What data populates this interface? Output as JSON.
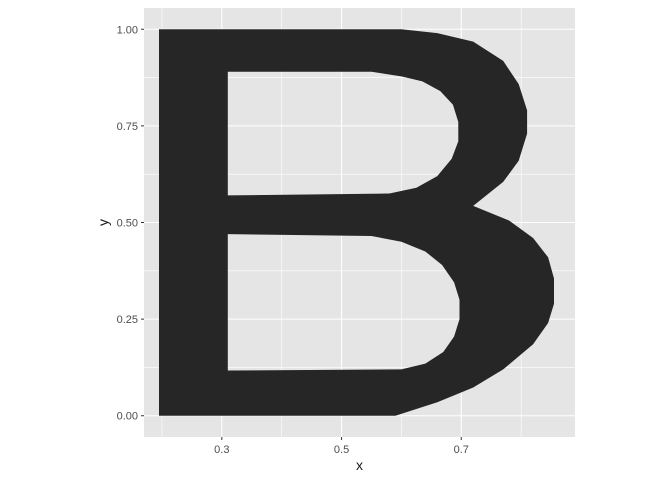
{
  "chart_data": {
    "type": "polygon",
    "title": "",
    "xlabel": "x",
    "ylabel": "y",
    "xlim": [
      0.17,
      0.89
    ],
    "ylim": [
      -0.055,
      1.055
    ],
    "x_ticks": [
      0.3,
      0.5,
      0.7
    ],
    "x_tick_labels": [
      "0.3",
      "0.5",
      "0.7"
    ],
    "y_ticks": [
      0.0,
      0.25,
      0.5,
      0.75,
      1.0
    ],
    "y_tick_labels": [
      "0.00",
      "0.25",
      "0.50",
      "0.75",
      "1.00"
    ],
    "grid": true,
    "legend": "none",
    "colors": {
      "panel_bg": "#e5e5e5",
      "grid": "#ffffff",
      "fill": "#262626",
      "tick_text": "#4d4d4d",
      "axis_title": "#1a1a1a",
      "tick": "#333333"
    },
    "outer": [
      [
        0.195,
        0.0
      ],
      [
        0.195,
        1.0
      ],
      [
        0.6,
        1.0
      ],
      [
        0.66,
        0.99
      ],
      [
        0.72,
        0.968
      ],
      [
        0.77,
        0.918
      ],
      [
        0.796,
        0.858
      ],
      [
        0.81,
        0.79
      ],
      [
        0.81,
        0.73
      ],
      [
        0.796,
        0.66
      ],
      [
        0.77,
        0.605
      ],
      [
        0.72,
        0.543
      ],
      [
        0.78,
        0.505
      ],
      [
        0.82,
        0.46
      ],
      [
        0.845,
        0.41
      ],
      [
        0.855,
        0.355
      ],
      [
        0.855,
        0.29
      ],
      [
        0.845,
        0.24
      ],
      [
        0.82,
        0.185
      ],
      [
        0.77,
        0.12
      ],
      [
        0.72,
        0.073
      ],
      [
        0.66,
        0.035
      ],
      [
        0.59,
        0.0
      ]
    ],
    "holes": [
      [
        [
          0.31,
          0.89
        ],
        [
          0.31,
          0.57
        ],
        [
          0.58,
          0.575
        ],
        [
          0.625,
          0.59
        ],
        [
          0.66,
          0.62
        ],
        [
          0.684,
          0.665
        ],
        [
          0.695,
          0.71
        ],
        [
          0.695,
          0.76
        ],
        [
          0.686,
          0.805
        ],
        [
          0.665,
          0.84
        ],
        [
          0.635,
          0.865
        ],
        [
          0.6,
          0.878
        ],
        [
          0.55,
          0.89
        ]
      ],
      [
        [
          0.31,
          0.47
        ],
        [
          0.31,
          0.117
        ],
        [
          0.6,
          0.12
        ],
        [
          0.64,
          0.135
        ],
        [
          0.67,
          0.165
        ],
        [
          0.688,
          0.205
        ],
        [
          0.697,
          0.25
        ],
        [
          0.697,
          0.3
        ],
        [
          0.688,
          0.345
        ],
        [
          0.668,
          0.39
        ],
        [
          0.64,
          0.425
        ],
        [
          0.6,
          0.45
        ],
        [
          0.55,
          0.465
        ]
      ]
    ]
  }
}
